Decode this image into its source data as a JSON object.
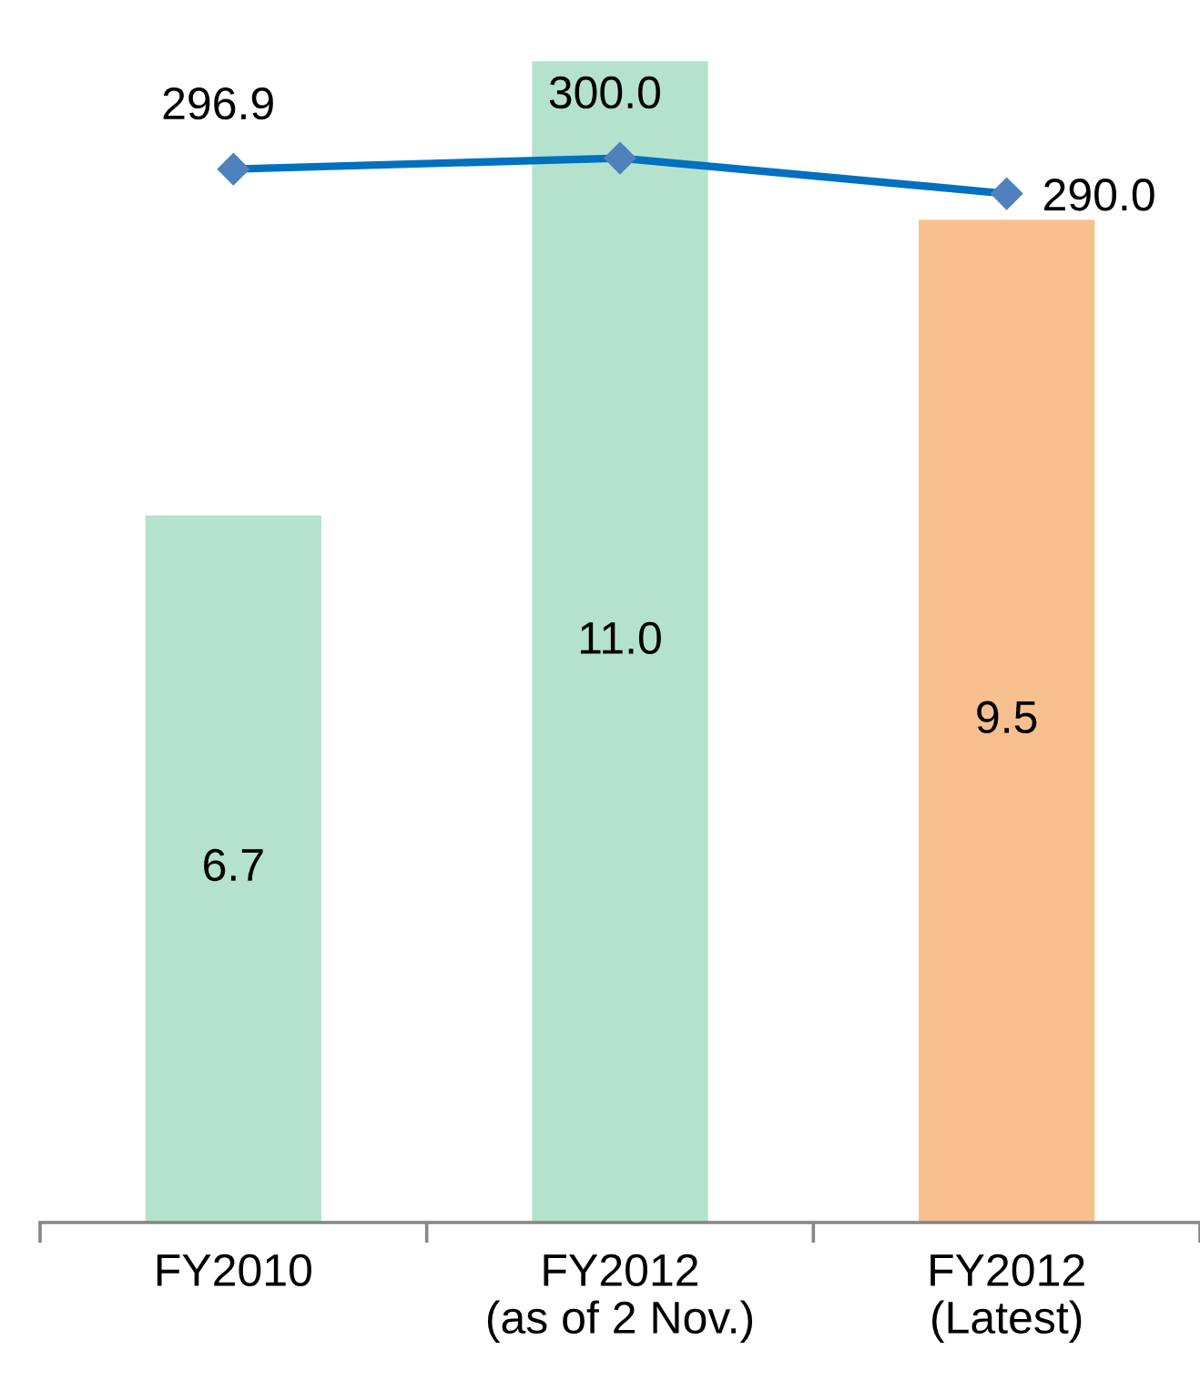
{
  "chart_data": {
    "type": "bar",
    "categories": [
      "FY2010",
      "FY2012\n(as of 2 Nov.)",
      "FY2012\n(Latest)"
    ],
    "series": [
      {
        "colors": [
          "#b5e2cc",
          "#b5e2cc",
          "#f8bf8f"
        ],
        "values": [
          6.7,
          11.0,
          9.5
        ],
        "value_labels": [
          "6.7",
          "11.0",
          "9.5"
        ]
      },
      {
        "type": "line",
        "axis": "y2",
        "color": "#0070c0",
        "colors": [
          "#4f81bd",
          "#4f81bd",
          "#4f81bd"
        ],
        "values": [
          296.9,
          300.0,
          290.0
        ],
        "value_labels": [
          "296.9",
          "300.0",
          "290.0"
        ]
      }
    ],
    "marker": "diamond",
    "line_style": "solid",
    "tick_labels": "x"
  }
}
